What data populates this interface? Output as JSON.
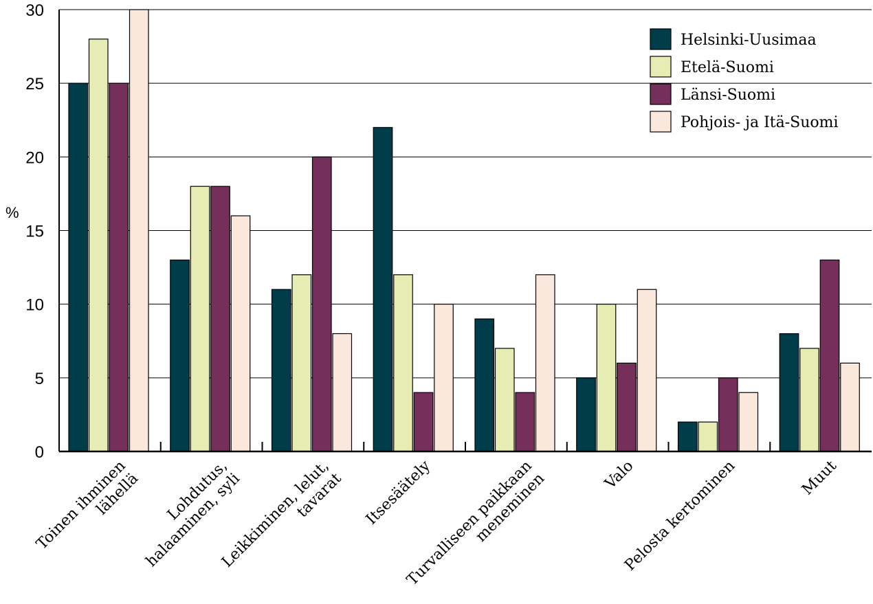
{
  "chart_data": {
    "type": "bar",
    "title": "",
    "ylabel": "%",
    "xlabel": "",
    "ylim": [
      0,
      30
    ],
    "yticks": [
      0,
      5,
      10,
      15,
      20,
      25,
      30
    ],
    "grid": true,
    "legend_position": "top-right",
    "categories": [
      [
        "Toinen ihminen",
        "lähellä"
      ],
      [
        "Lohdutus,",
        "halaaminen, syli"
      ],
      [
        "Leikkiminen, lelut,",
        "tavarat"
      ],
      [
        "Itsesäätely"
      ],
      [
        "Turvalliseen paikkaan",
        "meneminen"
      ],
      [
        "Valo"
      ],
      [
        "Pelosta kertominen"
      ],
      [
        "Muut"
      ]
    ],
    "series": [
      {
        "name": "Helsinki-Uusimaa",
        "color": "#003d4a",
        "values": [
          25,
          13,
          11,
          22,
          9,
          5,
          2,
          8
        ]
      },
      {
        "name": "Etelä-Suomi",
        "color": "#e6ecb3",
        "values": [
          28,
          18,
          12,
          12,
          7,
          10,
          2,
          7
        ]
      },
      {
        "name": "Länsi-Suomi",
        "color": "#742f5a",
        "values": [
          25,
          18,
          20,
          4,
          4,
          6,
          5,
          13
        ]
      },
      {
        "name": "Pohjois- ja Itä-Suomi",
        "color": "#fbe8dc",
        "values": [
          30,
          16,
          8,
          10,
          12,
          11,
          4,
          6
        ]
      }
    ]
  }
}
